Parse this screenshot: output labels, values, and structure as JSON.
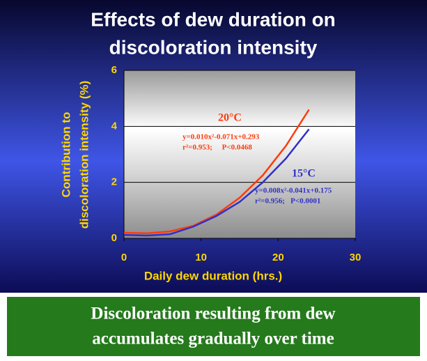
{
  "chart_data": {
    "type": "line",
    "title": "Effects of dew duration on discoloration intensity",
    "title_lines": [
      "Effects of dew duration on",
      "discoloration intensity"
    ],
    "xlabel": "Daily dew duration (hrs.)",
    "ylabel_lines": [
      "Contribution to",
      "discoloration intensity (%)"
    ],
    "x": [
      0,
      3,
      6,
      9,
      12,
      15,
      18,
      21,
      24
    ],
    "series": [
      {
        "name": "20°C",
        "color": "#ff3a0a",
        "values": [
          0.2,
          0.18,
          0.25,
          0.45,
          0.85,
          1.45,
          2.25,
          3.3,
          4.6
        ],
        "equation": "y=0.010x²-0.071x+0.293",
        "fit": "r²=0.953;     P<0.0468"
      },
      {
        "name": "15°C",
        "color": "#3030c8",
        "values": [
          0.12,
          0.1,
          0.15,
          0.42,
          0.8,
          1.3,
          2.0,
          2.85,
          3.9
        ],
        "equation": "y=0.008x²-0.041x+0.175",
        "fit": "r²=0.956;   P<0.0001"
      }
    ],
    "xlim": [
      0,
      30
    ],
    "xticks": [
      0,
      10,
      20,
      30
    ],
    "ylim": [
      0,
      6
    ],
    "yticks": [
      0,
      2,
      4,
      6
    ],
    "grid": true
  },
  "footer": {
    "lines": [
      "Discoloration resulting from dew",
      "accumulates gradually over time"
    ]
  }
}
